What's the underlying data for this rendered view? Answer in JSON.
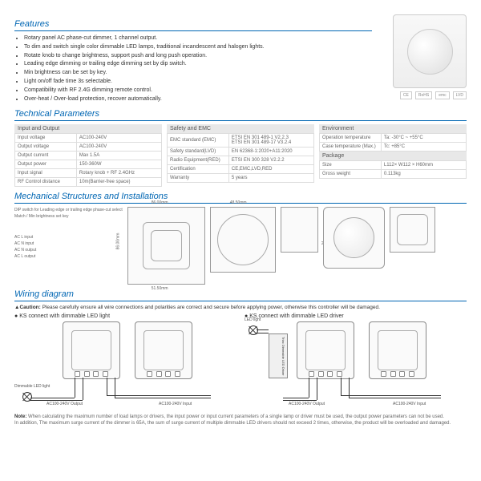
{
  "features": {
    "title": "Features",
    "items": [
      "Rotary panel AC phase-cut dimmer, 1 channel output.",
      "To dim and switch single color dimmable LED lamps, traditional incandescent and halogen lights.",
      "Rotate knob to change brightness, support push and long push operation.",
      "Leading edge dimming or trailing edge dimming set by dip switch.",
      "Min brightness can be set by key.",
      "Light on/off fade time 3s selectable.",
      "Compatibility with RF 2.4G dimming remote control.",
      "Over-heat / Over-load protection, recover automatically."
    ]
  },
  "cert": [
    "CE",
    "RoHS",
    "emc",
    "LVD"
  ],
  "tech": {
    "title": "Technical Parameters",
    "cols": [
      {
        "head": "Input and Output",
        "rows": [
          [
            "Input voltage",
            "AC100-240V"
          ],
          [
            "Output voltage",
            "AC100-240V"
          ],
          [
            "Output current",
            "Max 1.5A"
          ],
          [
            "Output power",
            "150-360W"
          ],
          [
            "Input signal",
            "Rotary knob + RF 2.4GHz"
          ],
          [
            "RF Control distance",
            "10m(Barrier-free space)"
          ]
        ]
      },
      {
        "head": "Safety and EMC",
        "rows": [
          [
            "EMC standard (EMC)",
            "ETSI EN 301 489-1 V2.2.3\nETSI EN 301 489-17 V3.2.4"
          ],
          [
            "Safety standard(LVD)",
            "EN 62368-1:2020+A11:2020"
          ],
          [
            "Radio Equipment(RED)",
            "ETSI EN 300 328 V2.2.2"
          ],
          [
            "Certification",
            "CE,EMC,LVD,RED"
          ],
          [
            "Warranty",
            "5 years"
          ]
        ]
      },
      [
        {
          "head": "Environment",
          "rows": [
            [
              "Operation temperature",
              "Ta: -30°C ~ +55°C"
            ],
            [
              "Case temperature (Max.)",
              "Tc: +85°C"
            ]
          ]
        },
        {
          "head": "Package",
          "rows": [
            [
              "Size",
              "L112× W112 × H60mm"
            ],
            [
              "Gross weight",
              "0.113kg"
            ]
          ]
        }
      ]
    ]
  },
  "mech": {
    "title": "Mechanical Structures and Installations",
    "annotations": [
      "DIP switch for Leading edge\nor trailing edge phase-cut select",
      "Match / Min brightness set key",
      "AC L input",
      "AC N input",
      "AC N output",
      "AC L output"
    ],
    "dims": {
      "w1": "86.00mm",
      "h1": "86.00mm",
      "w2": "51.50mm",
      "w3": "48.50mm",
      "h3": "51.50mm",
      "d3": "26mm"
    }
  },
  "wiring": {
    "title": "Wiring diagram",
    "caution": "Please carefully ensure all wire connections and polarities are correct and secure before applying power, otherwise this controller will be damaged.",
    "left": {
      "title": "KS connect with dimmable LED light",
      "labels": {
        "out": "AC100-240V Output",
        "in": "AC100-240V Input",
        "load": "Dimmable LED light"
      }
    },
    "right": {
      "title": "KS connect with dimmable LED driver",
      "labels": {
        "led": "LED light",
        "driver": "Triac Dimmable LED Driver",
        "out": "AC100-240V Output",
        "in": "AC100-240V Input"
      }
    }
  },
  "note": {
    "bold": "Note:",
    "text": " When calculating the maximum number of load lamps or drivers, the input power or input current parameters of a single lamp or driver must be used, the output power parameters can not be used.\nIn addition, The maximum surge current of the dimmer is 65A, the sum of surge current of multiple dimmable LED drivers should not exceed 2 times, otherwise, the product will be overloaded and damaged."
  }
}
